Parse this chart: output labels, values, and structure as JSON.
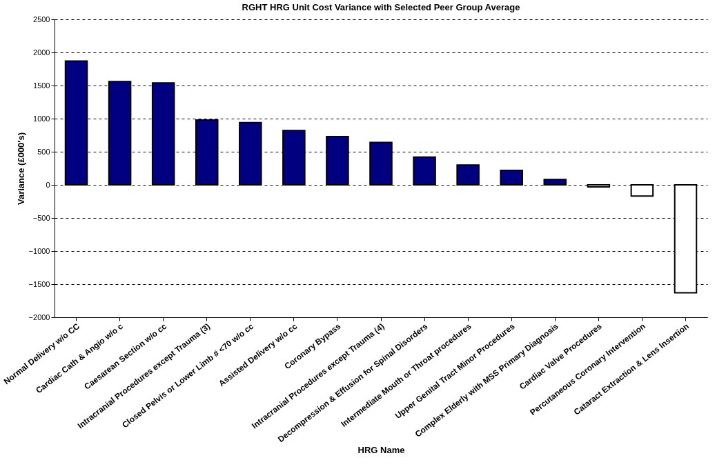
{
  "chart_data": {
    "type": "bar",
    "title": "RGHT HRG Unit Cost Variance with Selected Peer Group Average",
    "xlabel": "HRG Name",
    "ylabel": "Variance (£000's)",
    "categories": [
      "Normal Delivery w/o CC",
      "Cardiac Cath & Angio w/o c",
      "Caesarean Section w/o cc",
      "Intracranial Procedures except Trauma (3)",
      "Closed Pelvis or Lower Limb # <70 w/o cc",
      "Assisted Delivery w/o cc",
      "Coronary Bypass",
      "Intracranial Procedures except Trauma (4)",
      "Decompression & Effusion for Spinal Disorders",
      "Intermediate Mouth or Throat procedures",
      "Upper Genital Tract Minor Procedures",
      "Complex Elderly with MSS Primary Diagnosis",
      "Cardiac Valve Procedures",
      "Percutaneous Coronary Intervention",
      "Cataract Extraction & Lens Insertion"
    ],
    "values": [
      1870,
      1560,
      1540,
      980,
      940,
      820,
      730,
      640,
      420,
      300,
      220,
      80,
      -30,
      -170,
      -1630
    ],
    "colors": [
      "#000080",
      "#000080",
      "#000080",
      "#000080",
      "#000080",
      "#000080",
      "#000080",
      "#000080",
      "#000080",
      "#000080",
      "#000080",
      "#000080",
      "#ffffff",
      "#ffffff",
      "#ffffff"
    ],
    "ylim": [
      -2000,
      2500
    ],
    "yticks": [
      -2000,
      -1500,
      -1000,
      -500,
      0,
      500,
      1000,
      1500,
      2000,
      2500
    ],
    "grid": "y"
  }
}
